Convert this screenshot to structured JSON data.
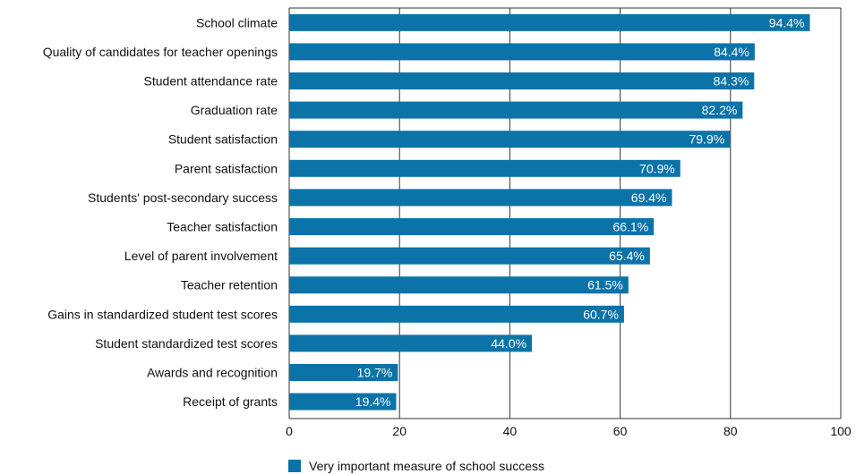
{
  "chart_data": {
    "type": "bar",
    "orientation": "horizontal",
    "categories": [
      "School climate",
      "Quality of candidates for teacher openings",
      "Student attendance rate",
      "Graduation rate",
      "Student satisfaction",
      "Parent satisfaction",
      "Students' post-secondary success",
      "Teacher satisfaction",
      "Level of parent involvement",
      "Teacher retention",
      "Gains in standardized student test scores",
      "Student standardized test scores",
      "Awards and recognition",
      "Receipt of grants"
    ],
    "series": [
      {
        "name": "Very important measure of school success",
        "values": [
          94.4,
          84.4,
          84.3,
          82.2,
          79.9,
          70.9,
          69.4,
          66.1,
          65.4,
          61.5,
          60.7,
          44.0,
          19.7,
          19.4
        ],
        "data_labels": [
          "94.4%",
          "84.4%",
          "84.3%",
          "82.2%",
          "79.9%",
          "70.9%",
          "69.4%",
          "66.1%",
          "65.4%",
          "61.5%",
          "60.7%",
          "44.0%",
          "19.7%",
          "19.4%"
        ]
      }
    ],
    "xlim": [
      0,
      100
    ],
    "xticks": [
      0,
      20,
      40,
      60,
      80,
      100
    ],
    "xtick_labels": [
      "0",
      "20",
      "40",
      "60",
      "80",
      "100"
    ],
    "grid": true,
    "legend_position": "bottom-left",
    "colors": {
      "bar": "#0b73a8",
      "grid": "#333333",
      "text": "#111111",
      "label_text": "#ffffff"
    }
  }
}
